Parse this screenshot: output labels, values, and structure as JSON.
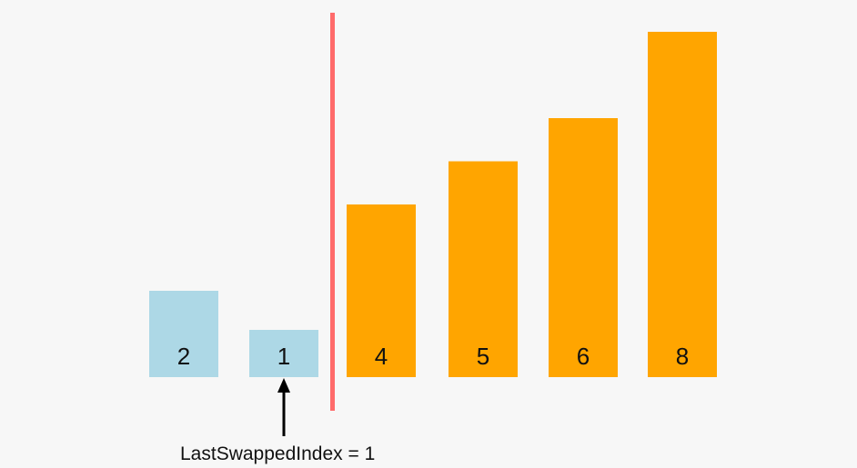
{
  "diagram": {
    "bars": [
      {
        "value": 2,
        "label": "2",
        "color": "#add8e6",
        "state": "unsorted"
      },
      {
        "value": 1,
        "label": "1",
        "color": "#add8e6",
        "state": "unsorted"
      },
      {
        "value": 4,
        "label": "4",
        "color": "#ffa500",
        "state": "sorted"
      },
      {
        "value": 5,
        "label": "5",
        "color": "#ffa500",
        "state": "sorted"
      },
      {
        "value": 6,
        "label": "6",
        "color": "#ffa500",
        "state": "sorted"
      },
      {
        "value": 8,
        "label": "8",
        "color": "#ffa500",
        "state": "sorted"
      }
    ],
    "divider": {
      "after_bar_index": 1,
      "color": "#ff6b6b"
    },
    "pointer": {
      "target_bar_index": 1,
      "color": "#000000"
    },
    "caption": "LastSwappedIndex = 1"
  }
}
